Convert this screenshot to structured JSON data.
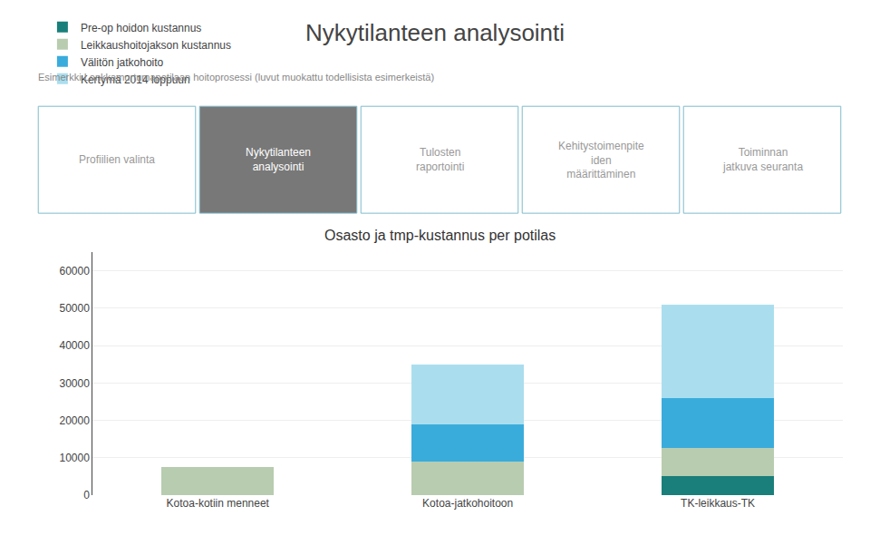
{
  "chart_data": {
    "type": "bar",
    "stacked": true,
    "title": "Nykytilanteen analysointi",
    "subtitle": "Esimerkki Lonkkamurtumapotilaan hoitoprosessi (luvut muokattu todellisista esimerkeistä)",
    "annotations": [
      "Profiilien valinta",
      "Nykytilanteen\nanalysointi",
      "Tulosten\nraportointi",
      "Kehitystoimenpite\niden\nmäärittäminen",
      "Toiminnan\njatkuva seuranta",
      "Osasto ja tmp-kustannus per potilas"
    ],
    "categories": [
      "Kotoa-kotiin menneet",
      "Kotoa-jatkohoitoon",
      "TK-leikkaus-TK"
    ],
    "series": [
      {
        "name": "Pre-op hoidon kustannus",
        "color": "#1a7f7a",
        "values": [
          0,
          0,
          5000
        ]
      },
      {
        "name": "Leikkaushoitojakson kustannus",
        "color": "#b8ccb0",
        "values": [
          7500,
          9000,
          7500
        ]
      },
      {
        "name": "Välitön jatkohoito",
        "color": "#3aacdc",
        "values": [
          0,
          10000,
          13500
        ]
      },
      {
        "name": "Kertymä 2014 loppuun",
        "color": "#aadeef",
        "values": [
          0,
          16000,
          25000
        ]
      }
    ],
    "ylim": [
      0,
      65000
    ],
    "yticks": [
      0,
      10000,
      20000,
      30000,
      40000,
      50000,
      60000
    ],
    "grid": true,
    "legend": "upper left"
  }
}
